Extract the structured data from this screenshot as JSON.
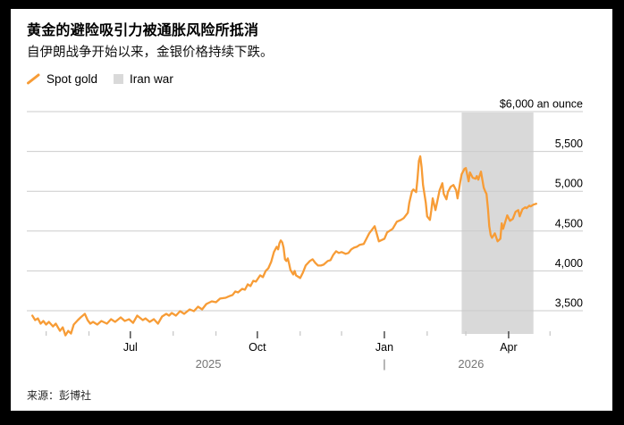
{
  "header": {
    "title": "黄金的避险吸引力被通胀风险所抵消",
    "subtitle": "自伊朗战争开始以来，金银价格持续下跌。"
  },
  "legend": [
    {
      "label": "Spot gold",
      "swatch": "line-slash-icon",
      "color": "#F79C36"
    },
    {
      "label": "Iran war",
      "swatch": "band-square-icon",
      "color": "#D9D9D9"
    }
  ],
  "source": "来源：彭博社",
  "colors": {
    "line": "#F79C36",
    "band": "#D9D9D9",
    "grid": "#CBCBCB",
    "axis_text": "#000000",
    "year_text": "#767676",
    "minor_tick": "#C9C9C9",
    "major_tick": "#333333",
    "card_bg": "#FFFFFF",
    "frame_bg": "#000000"
  },
  "chart_data": {
    "type": "line",
    "title": "黄金的避险吸引力被通胀风险所抵消",
    "xlabel": "",
    "ylabel": "$ an ounce",
    "ylim": [
      3200,
      6000
    ],
    "grid": true,
    "y_axis": {
      "labels_side": "right",
      "ticks": [
        {
          "value": 6000,
          "label": "$6,000 an ounce"
        },
        {
          "value": 5500,
          "label": "5,500"
        },
        {
          "value": 5000,
          "label": "5,000"
        },
        {
          "value": 4500,
          "label": "4,500"
        },
        {
          "value": 4000,
          "label": "4,000"
        },
        {
          "value": 3500,
          "label": "3,500"
        }
      ]
    },
    "x_axis": {
      "minor_tick_dates": [
        "2025-05-01",
        "2025-06-01",
        "2025-08-01",
        "2025-09-01",
        "2025-11-01",
        "2025-12-01",
        "2026-02-01",
        "2026-03-01",
        "2026-05-01"
      ],
      "labeled_ticks": [
        {
          "date": "2025-07-01",
          "label": "Jul"
        },
        {
          "date": "2025-10-01",
          "label": "Oct"
        },
        {
          "date": "2026-01-01",
          "label": "Jan"
        },
        {
          "date": "2026-04-01",
          "label": "Apr"
        }
      ],
      "year_labels": [
        {
          "label": "2025"
        },
        {
          "label": "2026"
        }
      ],
      "year_divider": "|",
      "year_divider_date": "2026-01-01"
    },
    "band": {
      "label": "Iran war",
      "start": "2026-02-26",
      "end": "2026-04-19",
      "color": "#D9D9D9"
    },
    "series": [
      {
        "name": "Spot gold",
        "color": "#F79C36",
        "points": [
          [
            "2025-04-21",
            3438
          ],
          [
            "2025-04-23",
            3382
          ],
          [
            "2025-04-25",
            3404
          ],
          [
            "2025-04-27",
            3337
          ],
          [
            "2025-04-29",
            3371
          ],
          [
            "2025-05-01",
            3326
          ],
          [
            "2025-05-03",
            3360
          ],
          [
            "2025-05-06",
            3303
          ],
          [
            "2025-05-08",
            3337
          ],
          [
            "2025-05-11",
            3247
          ],
          [
            "2025-05-13",
            3292
          ],
          [
            "2025-05-15",
            3191
          ],
          [
            "2025-05-17",
            3247
          ],
          [
            "2025-05-19",
            3213
          ],
          [
            "2025-05-21",
            3326
          ],
          [
            "2025-05-24",
            3382
          ],
          [
            "2025-05-26",
            3416
          ],
          [
            "2025-05-29",
            3461
          ],
          [
            "2025-05-31",
            3382
          ],
          [
            "2025-06-02",
            3337
          ],
          [
            "2025-06-04",
            3360
          ],
          [
            "2025-06-07",
            3326
          ],
          [
            "2025-06-10",
            3371
          ],
          [
            "2025-06-14",
            3337
          ],
          [
            "2025-06-17",
            3393
          ],
          [
            "2025-06-20",
            3360
          ],
          [
            "2025-06-24",
            3416
          ],
          [
            "2025-06-27",
            3371
          ],
          [
            "2025-06-30",
            3393
          ],
          [
            "2025-07-03",
            3348
          ],
          [
            "2025-07-06",
            3438
          ],
          [
            "2025-07-10",
            3382
          ],
          [
            "2025-07-12",
            3404
          ],
          [
            "2025-07-15",
            3360
          ],
          [
            "2025-07-18",
            3393
          ],
          [
            "2025-07-21",
            3337
          ],
          [
            "2025-07-24",
            3427
          ],
          [
            "2025-07-27",
            3461
          ],
          [
            "2025-07-29",
            3438
          ],
          [
            "2025-07-31",
            3472
          ],
          [
            "2025-08-03",
            3438
          ],
          [
            "2025-08-06",
            3494
          ],
          [
            "2025-08-09",
            3461
          ],
          [
            "2025-08-13",
            3517
          ],
          [
            "2025-08-16",
            3494
          ],
          [
            "2025-08-19",
            3551
          ],
          [
            "2025-08-22",
            3517
          ],
          [
            "2025-08-25",
            3584
          ],
          [
            "2025-08-29",
            3618
          ],
          [
            "2025-09-01",
            3607
          ],
          [
            "2025-09-04",
            3652
          ],
          [
            "2025-09-08",
            3663
          ],
          [
            "2025-09-11",
            3685
          ],
          [
            "2025-09-13",
            3697
          ],
          [
            "2025-09-15",
            3742
          ],
          [
            "2025-09-17",
            3730
          ],
          [
            "2025-09-20",
            3775
          ],
          [
            "2025-09-22",
            3764
          ],
          [
            "2025-09-24",
            3831
          ],
          [
            "2025-09-26",
            3809
          ],
          [
            "2025-09-28",
            3876
          ],
          [
            "2025-09-30",
            3865
          ],
          [
            "2025-10-03",
            3944
          ],
          [
            "2025-10-05",
            3921
          ],
          [
            "2025-10-07",
            4000
          ],
          [
            "2025-10-09",
            4034
          ],
          [
            "2025-10-11",
            4112
          ],
          [
            "2025-10-13",
            4236
          ],
          [
            "2025-10-15",
            4303
          ],
          [
            "2025-10-16",
            4270
          ],
          [
            "2025-10-17",
            4348
          ],
          [
            "2025-10-18",
            4382
          ],
          [
            "2025-10-19",
            4359
          ],
          [
            "2025-10-20",
            4292
          ],
          [
            "2025-10-21",
            4146
          ],
          [
            "2025-10-22",
            4124
          ],
          [
            "2025-10-23",
            4157
          ],
          [
            "2025-10-24",
            4090
          ],
          [
            "2025-10-25",
            4011
          ],
          [
            "2025-10-27",
            3955
          ],
          [
            "2025-10-28",
            4000
          ],
          [
            "2025-10-29",
            3944
          ],
          [
            "2025-11-01",
            3910
          ],
          [
            "2025-11-03",
            3978
          ],
          [
            "2025-11-05",
            4067
          ],
          [
            "2025-11-08",
            4124
          ],
          [
            "2025-11-10",
            4146
          ],
          [
            "2025-11-12",
            4101
          ],
          [
            "2025-11-14",
            4067
          ],
          [
            "2025-11-16",
            4067
          ],
          [
            "2025-11-18",
            4079
          ],
          [
            "2025-11-21",
            4124
          ],
          [
            "2025-11-23",
            4135
          ],
          [
            "2025-11-25",
            4202
          ],
          [
            "2025-11-27",
            4247
          ],
          [
            "2025-11-29",
            4225
          ],
          [
            "2025-12-01",
            4236
          ],
          [
            "2025-12-04",
            4214
          ],
          [
            "2025-12-06",
            4225
          ],
          [
            "2025-12-08",
            4270
          ],
          [
            "2025-12-10",
            4292
          ],
          [
            "2025-12-12",
            4303
          ],
          [
            "2025-12-14",
            4326
          ],
          [
            "2025-12-17",
            4337
          ],
          [
            "2025-12-19",
            4404
          ],
          [
            "2025-12-21",
            4472
          ],
          [
            "2025-12-23",
            4517
          ],
          [
            "2025-12-25",
            4562
          ],
          [
            "2025-12-28",
            4371
          ],
          [
            "2026-01-01",
            4404
          ],
          [
            "2026-01-03",
            4483
          ],
          [
            "2026-01-05",
            4506
          ],
          [
            "2026-01-07",
            4528
          ],
          [
            "2026-01-10",
            4618
          ],
          [
            "2026-01-13",
            4640
          ],
          [
            "2026-01-15",
            4663
          ],
          [
            "2026-01-18",
            4730
          ],
          [
            "2026-01-19",
            4854
          ],
          [
            "2026-01-21",
            5000
          ],
          [
            "2026-01-22",
            5022
          ],
          [
            "2026-01-24",
            4989
          ],
          [
            "2026-01-25",
            5157
          ],
          [
            "2026-01-26",
            5382
          ],
          [
            "2026-01-27",
            5438
          ],
          [
            "2026-01-28",
            5303
          ],
          [
            "2026-01-29",
            5079
          ],
          [
            "2026-01-31",
            4854
          ],
          [
            "2026-02-01",
            4685
          ],
          [
            "2026-02-03",
            4640
          ],
          [
            "2026-02-04",
            4764
          ],
          [
            "2026-02-05",
            4910
          ],
          [
            "2026-02-07",
            4764
          ],
          [
            "2026-02-08",
            4843
          ],
          [
            "2026-02-10",
            5011
          ],
          [
            "2026-02-12",
            5101
          ],
          [
            "2026-02-13",
            4966
          ],
          [
            "2026-02-15",
            4899
          ],
          [
            "2026-02-16",
            4989
          ],
          [
            "2026-02-18",
            5056
          ],
          [
            "2026-02-20",
            5079
          ],
          [
            "2026-02-22",
            5011
          ],
          [
            "2026-02-23",
            4910
          ],
          [
            "2026-02-25",
            5124
          ],
          [
            "2026-02-26",
            5213
          ],
          [
            "2026-02-28",
            5281
          ],
          [
            "2026-03-01",
            5292
          ],
          [
            "2026-03-03",
            5124
          ],
          [
            "2026-03-04",
            5236
          ],
          [
            "2026-03-06",
            5169
          ],
          [
            "2026-03-08",
            5157
          ],
          [
            "2026-03-09",
            5191
          ],
          [
            "2026-03-10",
            5146
          ],
          [
            "2026-03-12",
            5247
          ],
          [
            "2026-03-14",
            5045
          ],
          [
            "2026-03-15",
            5000
          ],
          [
            "2026-03-16",
            4966
          ],
          [
            "2026-03-17",
            4787
          ],
          [
            "2026-03-18",
            4562
          ],
          [
            "2026-03-19",
            4449
          ],
          [
            "2026-03-20",
            4416
          ],
          [
            "2026-03-22",
            4472
          ],
          [
            "2026-03-24",
            4371
          ],
          [
            "2026-03-26",
            4404
          ],
          [
            "2026-03-27",
            4596
          ],
          [
            "2026-03-28",
            4528
          ],
          [
            "2026-03-31",
            4697
          ],
          [
            "2026-04-02",
            4629
          ],
          [
            "2026-04-04",
            4652
          ],
          [
            "2026-04-06",
            4742
          ],
          [
            "2026-04-08",
            4764
          ],
          [
            "2026-04-09",
            4685
          ],
          [
            "2026-04-11",
            4775
          ],
          [
            "2026-04-13",
            4798
          ],
          [
            "2026-04-14",
            4787
          ],
          [
            "2026-04-16",
            4820
          ],
          [
            "2026-04-17",
            4809
          ],
          [
            "2026-04-19",
            4832
          ],
          [
            "2026-04-21",
            4843
          ]
        ]
      }
    ]
  }
}
